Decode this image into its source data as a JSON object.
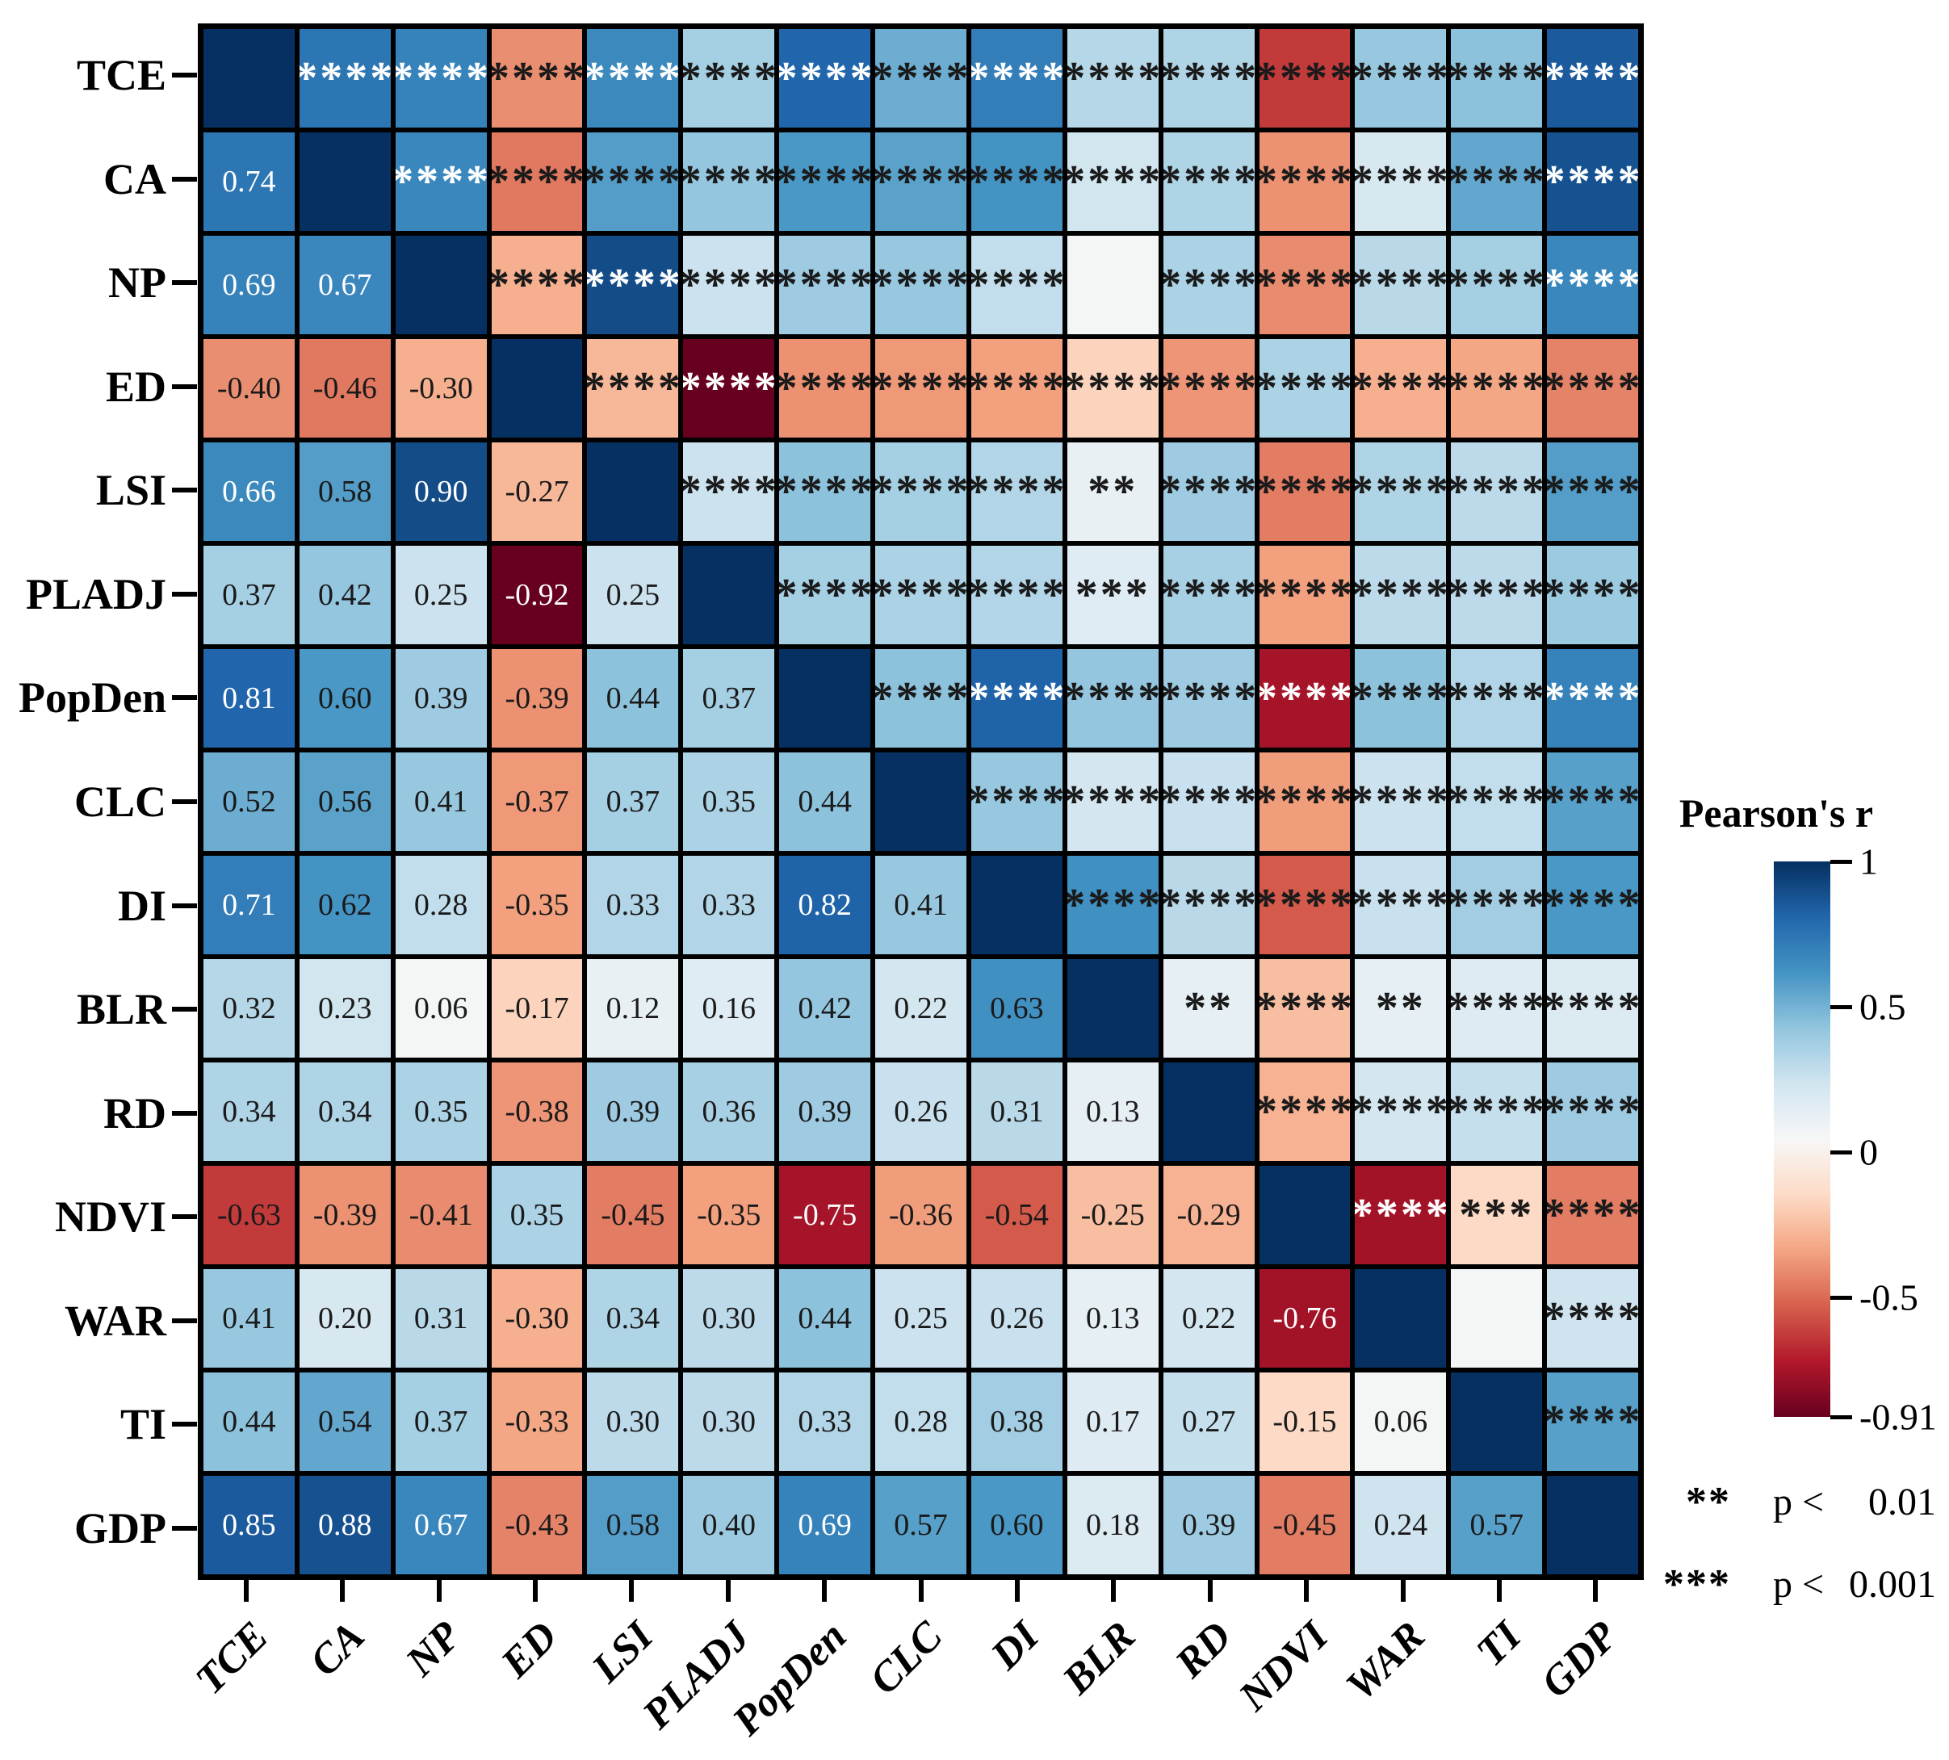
{
  "chart_data": {
    "type": "heatmap",
    "title": "",
    "colorbar": {
      "title": "Pearson's r",
      "ticks": [
        {
          "value": 1,
          "label": "1"
        },
        {
          "value": 0.5,
          "label": "0.5"
        },
        {
          "value": 0,
          "label": "0"
        },
        {
          "value": -0.5,
          "label": "-0.5"
        },
        {
          "value": -0.91,
          "label": "-0.91"
        }
      ]
    },
    "vmin": -0.91,
    "vmax": 1,
    "variables": [
      "TCE",
      "CA",
      "NP",
      "ED",
      "LSI",
      "PLADJ",
      "PopDen",
      "CLC",
      "DI",
      "BLR",
      "RD",
      "NDVI",
      "WAR",
      "TI",
      "GDP"
    ],
    "diagonal_value": 1,
    "matrix_lower": [
      [],
      [
        0.74
      ],
      [
        0.69,
        0.67
      ],
      [
        -0.4,
        -0.46,
        -0.3
      ],
      [
        0.66,
        0.58,
        0.9,
        -0.27
      ],
      [
        0.37,
        0.42,
        0.25,
        -0.92,
        0.25
      ],
      [
        0.81,
        0.6,
        0.39,
        -0.39,
        0.44,
        0.37
      ],
      [
        0.52,
        0.56,
        0.41,
        -0.37,
        0.37,
        0.35,
        0.44
      ],
      [
        0.71,
        0.62,
        0.28,
        -0.35,
        0.33,
        0.33,
        0.82,
        0.41
      ],
      [
        0.32,
        0.23,
        0.06,
        -0.17,
        0.12,
        0.16,
        0.42,
        0.22,
        0.63
      ],
      [
        0.34,
        0.34,
        0.35,
        -0.38,
        0.39,
        0.36,
        0.39,
        0.26,
        0.31,
        0.13
      ],
      [
        -0.63,
        -0.39,
        -0.41,
        0.35,
        -0.45,
        -0.35,
        -0.75,
        -0.36,
        -0.54,
        -0.25,
        -0.29
      ],
      [
        0.41,
        0.2,
        0.31,
        -0.3,
        0.34,
        0.3,
        0.44,
        0.25,
        0.26,
        0.13,
        0.22,
        -0.76
      ],
      [
        0.44,
        0.54,
        0.37,
        -0.33,
        0.3,
        0.3,
        0.33,
        0.28,
        0.38,
        0.17,
        0.27,
        -0.15,
        0.06
      ],
      [
        0.85,
        0.88,
        0.67,
        -0.43,
        0.58,
        0.4,
        0.69,
        0.57,
        0.6,
        0.18,
        0.39,
        -0.45,
        0.24,
        0.57
      ]
    ],
    "stars_default": "****",
    "stars_exceptions": [
      {
        "row": "NP",
        "col": "BLR",
        "stars": ""
      },
      {
        "row": "LSI",
        "col": "BLR",
        "stars": "**"
      },
      {
        "row": "PLADJ",
        "col": "BLR",
        "stars": "***"
      },
      {
        "row": "BLR",
        "col": "RD",
        "stars": "**"
      },
      {
        "row": "BLR",
        "col": "WAR",
        "stars": "**"
      },
      {
        "row": "NDVI",
        "col": "TI",
        "stars": "***"
      },
      {
        "row": "WAR",
        "col": "TI",
        "stars": ""
      }
    ],
    "colormap_rdbu": [
      "#67001f",
      "#b2182b",
      "#d6604d",
      "#f4a582",
      "#fddbc7",
      "#f7f7f7",
      "#d1e5f0",
      "#92c5de",
      "#4393c3",
      "#2166ac",
      "#053061"
    ],
    "text_white_abs_threshold": 0.65,
    "p_legend": [
      {
        "stars": "**",
        "text": "p <",
        "value": "0.01"
      },
      {
        "stars": "***",
        "text": "p <",
        "value": "0.001"
      }
    ]
  }
}
